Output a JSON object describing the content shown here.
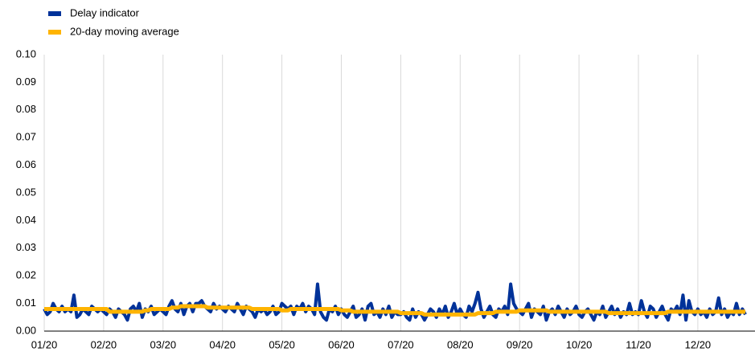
{
  "chart_data": {
    "type": "line",
    "categories": [
      "01/20",
      null,
      null,
      null,
      null,
      null,
      null,
      null,
      null,
      null,
      null,
      null,
      null,
      null,
      null,
      null,
      null,
      null,
      null,
      null,
      "02/20",
      null,
      null,
      null,
      null,
      null,
      null,
      null,
      null,
      null,
      null,
      null,
      null,
      null,
      null,
      null,
      null,
      null,
      null,
      null,
      "03/20",
      null,
      null,
      null,
      null,
      null,
      null,
      null,
      null,
      null,
      null,
      null,
      null,
      null,
      null,
      null,
      null,
      null,
      null,
      null,
      "04/20",
      null,
      null,
      null,
      null,
      null,
      null,
      null,
      null,
      null,
      null,
      null,
      null,
      null,
      null,
      null,
      null,
      null,
      null,
      null,
      "05/20",
      null,
      null,
      null,
      null,
      null,
      null,
      null,
      null,
      null,
      null,
      null,
      null,
      null,
      null,
      null,
      null,
      null,
      null,
      null,
      "06/20",
      null,
      null,
      null,
      null,
      null,
      null,
      null,
      null,
      null,
      null,
      null,
      null,
      null,
      null,
      null,
      null,
      null,
      null,
      null,
      "07/20",
      null,
      null,
      null,
      null,
      null,
      null,
      null,
      null,
      null,
      null,
      null,
      null,
      null,
      null,
      null,
      null,
      null,
      null,
      null,
      "08/20",
      null,
      null,
      null,
      null,
      null,
      null,
      null,
      null,
      null,
      null,
      null,
      null,
      null,
      null,
      null,
      null,
      null,
      null,
      null,
      "09/20",
      null,
      null,
      null,
      null,
      null,
      null,
      null,
      null,
      null,
      null,
      null,
      null,
      null,
      null,
      null,
      null,
      null,
      null,
      null,
      "10/20",
      null,
      null,
      null,
      null,
      null,
      null,
      null,
      null,
      null,
      null,
      null,
      null,
      null,
      null,
      null,
      null,
      null,
      null,
      null,
      "11/20",
      null,
      null,
      null,
      null,
      null,
      null,
      null,
      null,
      null,
      null,
      null,
      null,
      null,
      null,
      null,
      null,
      null,
      null,
      null,
      "12/20",
      null,
      null,
      null,
      null,
      null,
      null,
      null,
      null,
      null,
      null,
      null,
      null,
      null,
      null,
      null,
      null
    ],
    "series": [
      {
        "name": "Delay indicator",
        "color": "#003299",
        "values": [
          0.008,
          0.006,
          0.007,
          0.01,
          0.008,
          0.007,
          0.009,
          0.007,
          0.008,
          0.007,
          0.013,
          0.005,
          0.006,
          0.008,
          0.007,
          0.006,
          0.009,
          0.008,
          0.007,
          0.008,
          0.007,
          0.006,
          0.008,
          0.007,
          0.005,
          0.008,
          0.007,
          0.006,
          0.004,
          0.008,
          0.009,
          0.007,
          0.01,
          0.005,
          0.008,
          0.007,
          0.009,
          0.006,
          0.007,
          0.008,
          0.007,
          0.006,
          0.009,
          0.011,
          0.008,
          0.007,
          0.01,
          0.006,
          0.009,
          0.01,
          0.007,
          0.01,
          0.01,
          0.011,
          0.009,
          0.008,
          0.007,
          0.01,
          0.008,
          0.009,
          0.008,
          0.007,
          0.009,
          0.008,
          0.007,
          0.01,
          0.008,
          0.006,
          0.009,
          0.008,
          0.007,
          0.005,
          0.008,
          0.007,
          0.008,
          0.006,
          0.007,
          0.009,
          0.006,
          0.007,
          0.01,
          0.009,
          0.008,
          0.009,
          0.006,
          0.009,
          0.008,
          0.01,
          0.007,
          0.009,
          0.008,
          0.006,
          0.017,
          0.007,
          0.005,
          0.004,
          0.008,
          0.007,
          0.009,
          0.006,
          0.008,
          0.006,
          0.005,
          0.007,
          0.009,
          0.005,
          0.006,
          0.008,
          0.004,
          0.009,
          0.01,
          0.006,
          0.007,
          0.005,
          0.008,
          0.006,
          0.009,
          0.005,
          0.007,
          0.006,
          0.006,
          0.007,
          0.005,
          0.004,
          0.008,
          0.005,
          0.007,
          0.006,
          0.004,
          0.006,
          0.008,
          0.007,
          0.005,
          0.008,
          0.006,
          0.009,
          0.005,
          0.007,
          0.01,
          0.006,
          0.008,
          0.006,
          0.005,
          0.009,
          0.007,
          0.01,
          0.014,
          0.008,
          0.005,
          0.007,
          0.009,
          0.006,
          0.005,
          0.008,
          0.007,
          0.009,
          0.006,
          0.017,
          0.01,
          0.008,
          0.007,
          0.006,
          0.008,
          0.01,
          0.005,
          0.008,
          0.007,
          0.006,
          0.009,
          0.004,
          0.007,
          0.008,
          0.006,
          0.009,
          0.007,
          0.005,
          0.008,
          0.006,
          0.007,
          0.009,
          0.006,
          0.005,
          0.007,
          0.008,
          0.006,
          0.004,
          0.007,
          0.006,
          0.009,
          0.005,
          0.007,
          0.009,
          0.006,
          0.008,
          0.005,
          0.007,
          0.006,
          0.01,
          0.006,
          0.007,
          0.006,
          0.011,
          0.007,
          0.005,
          0.009,
          0.008,
          0.005,
          0.007,
          0.009,
          0.006,
          0.004,
          0.008,
          0.007,
          0.009,
          0.006,
          0.013,
          0.004,
          0.011,
          0.007,
          0.006,
          0.008,
          0.006,
          0.007,
          0.005,
          0.008,
          0.006,
          0.007,
          0.012,
          0.006,
          0.008,
          0.005,
          0.007,
          0.006,
          0.01,
          0.006,
          0.008,
          0.006
        ]
      },
      {
        "name": "20-day moving average",
        "color": "#ffb400",
        "values": [
          0.008,
          0.008,
          0.008,
          0.008,
          0.008,
          0.008,
          0.008,
          0.008,
          0.008,
          0.008,
          0.008,
          0.008,
          0.008,
          0.008,
          0.008,
          0.008,
          0.008,
          0.008,
          0.008,
          0.008,
          0.008,
          0.008,
          0.007,
          0.007,
          0.007,
          0.007,
          0.007,
          0.007,
          0.007,
          0.007,
          0.007,
          0.007,
          0.007,
          0.007,
          0.0075,
          0.0075,
          0.008,
          0.008,
          0.008,
          0.008,
          0.008,
          0.008,
          0.008,
          0.0085,
          0.0085,
          0.0085,
          0.009,
          0.009,
          0.009,
          0.009,
          0.009,
          0.009,
          0.009,
          0.009,
          0.009,
          0.0085,
          0.0085,
          0.0085,
          0.0085,
          0.0085,
          0.0085,
          0.0085,
          0.0085,
          0.0085,
          0.0085,
          0.0085,
          0.0085,
          0.0085,
          0.0085,
          0.0085,
          0.008,
          0.008,
          0.008,
          0.008,
          0.008,
          0.008,
          0.008,
          0.008,
          0.008,
          0.008,
          0.0075,
          0.0075,
          0.0075,
          0.008,
          0.008,
          0.008,
          0.008,
          0.008,
          0.008,
          0.008,
          0.008,
          0.008,
          0.008,
          0.008,
          0.008,
          0.008,
          0.008,
          0.008,
          0.008,
          0.008,
          0.0075,
          0.0075,
          0.0075,
          0.0075,
          0.007,
          0.007,
          0.007,
          0.007,
          0.007,
          0.007,
          0.007,
          0.007,
          0.007,
          0.007,
          0.007,
          0.007,
          0.007,
          0.007,
          0.007,
          0.007,
          0.0065,
          0.0065,
          0.0065,
          0.0065,
          0.0065,
          0.0065,
          0.0065,
          0.0065,
          0.006,
          0.006,
          0.006,
          0.006,
          0.006,
          0.006,
          0.006,
          0.006,
          0.006,
          0.006,
          0.006,
          0.006,
          0.006,
          0.006,
          0.006,
          0.006,
          0.006,
          0.006,
          0.0065,
          0.0065,
          0.0065,
          0.0065,
          0.0065,
          0.0065,
          0.007,
          0.007,
          0.007,
          0.007,
          0.007,
          0.007,
          0.007,
          0.007,
          0.0075,
          0.0075,
          0.0075,
          0.0075,
          0.0075,
          0.0075,
          0.0075,
          0.0075,
          0.0075,
          0.0075,
          0.007,
          0.007,
          0.007,
          0.007,
          0.007,
          0.007,
          0.007,
          0.007,
          0.007,
          0.007,
          0.007,
          0.007,
          0.007,
          0.007,
          0.007,
          0.007,
          0.007,
          0.007,
          0.007,
          0.007,
          0.0065,
          0.0065,
          0.0065,
          0.0065,
          0.0065,
          0.0065,
          0.0065,
          0.0065,
          0.0065,
          0.0065,
          0.0065,
          0.0065,
          0.0065,
          0.0065,
          0.0065,
          0.0065,
          0.0065,
          0.0065,
          0.0065,
          0.0065,
          0.007,
          0.007,
          0.007,
          0.007,
          0.007,
          0.007,
          0.007,
          0.007,
          0.007,
          0.007,
          0.007,
          0.007,
          0.007,
          0.007,
          0.007,
          0.007,
          0.007,
          0.007,
          0.007,
          0.007,
          0.007,
          0.007,
          0.007,
          0.007,
          0.007,
          0.007,
          0.007
        ]
      }
    ],
    "ylim": [
      0,
      0.1
    ],
    "yticks": [
      {
        "value": 0,
        "label": "0.00"
      },
      {
        "value": 0.01,
        "label": "0.01"
      },
      {
        "value": 0.02,
        "label": "0.02"
      },
      {
        "value": 0.03,
        "label": "0.03"
      },
      {
        "value": 0.04,
        "label": "0.04"
      },
      {
        "value": 0.05,
        "label": "0.05"
      },
      {
        "value": 0.06,
        "label": "0.06"
      },
      {
        "value": 0.07,
        "label": "0.07"
      },
      {
        "value": 0.08,
        "label": "0.08"
      },
      {
        "value": 0.09,
        "label": "0.09"
      },
      {
        "value": 0.1,
        "label": "0.10"
      }
    ],
    "legend": "top-left",
    "grid": "vertical"
  }
}
